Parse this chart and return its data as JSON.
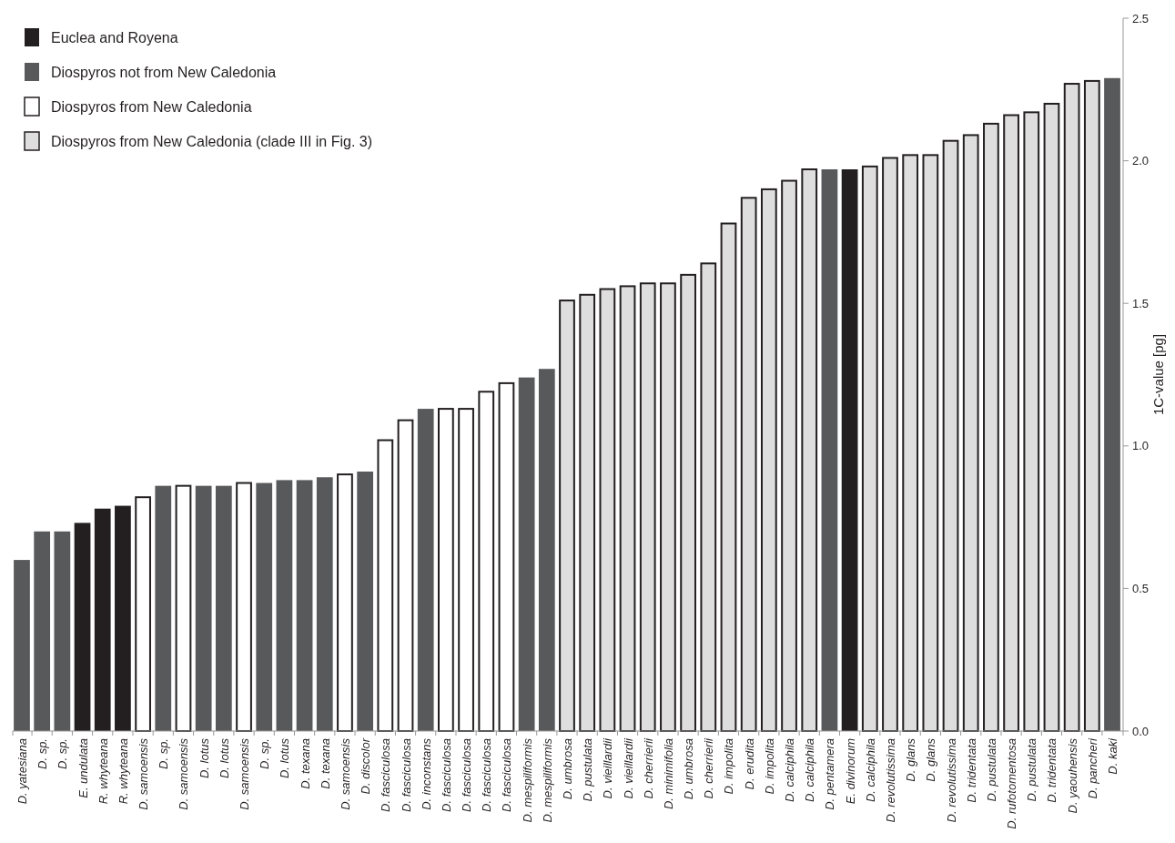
{
  "chart_data": {
    "type": "bar",
    "ylabel": "1C-value [pg]",
    "legend": "top left",
    "categories": [
      "D. yatesiana",
      "D. sp.",
      "D. sp.",
      "E. undulata",
      "R. whyteana",
      "R. whyteana",
      "D. samoensis",
      "D. sp.",
      "D. samoensis",
      "D. lotus",
      "D. lotus",
      "D. samoensis",
      "D. sp.",
      "D. lotus",
      "D. texana",
      "D. texana",
      "D. samoensis",
      "D. discolor",
      "D. fasciculosa",
      "D. fasciculosa",
      "D. inconstans",
      "D. fasciculosa",
      "D. fasciculosa",
      "D. fasciculosa",
      "D. fasciculosa",
      "D. mespiliformis",
      "D. mespiliformis",
      "D. umbrosa",
      "D. pustulata",
      "D. vieillardii",
      "D. vieillardii",
      "D. cherrierii",
      "D. minimifolia",
      "D. umbrosa",
      "D. cherrierii",
      "D. impolita",
      "D. erudita",
      "D. impolita",
      "D. calciphila",
      "D. calciphila",
      "D. pentamera",
      "E. divinorum",
      "D. calciphila",
      "D. revolutissima",
      "D. glans",
      "D. glans",
      "D. revolutissima",
      "D. tridentata",
      "D. pustulata",
      "D. rufotomentosa",
      "D. pustulata",
      "D. tridentata",
      "D. yaouhensis",
      "D. pancheri",
      "D. kaki"
    ],
    "series": [
      {
        "name": "Euclea and Royena",
        "color": "#231f20",
        "values": [
          null,
          null,
          null,
          0.73,
          0.78,
          0.79,
          null,
          null,
          null,
          null,
          null,
          null,
          null,
          null,
          null,
          null,
          null,
          null,
          null,
          null,
          null,
          null,
          null,
          null,
          null,
          null,
          null,
          null,
          null,
          null,
          null,
          null,
          null,
          null,
          null,
          null,
          null,
          null,
          null,
          null,
          null,
          1.97,
          null,
          null,
          null,
          null,
          null,
          null,
          null,
          null,
          null,
          null,
          null,
          null,
          null
        ]
      },
      {
        "name": "Diospyros not from New Caledonia",
        "color": "#58595b",
        "values": [
          0.6,
          0.7,
          0.7,
          null,
          null,
          null,
          null,
          0.86,
          null,
          0.86,
          0.86,
          null,
          0.87,
          0.88,
          0.88,
          0.89,
          null,
          0.91,
          null,
          null,
          1.13,
          null,
          null,
          null,
          null,
          1.24,
          1.27,
          null,
          null,
          null,
          null,
          null,
          null,
          null,
          null,
          null,
          null,
          null,
          null,
          null,
          1.97,
          null,
          null,
          null,
          null,
          null,
          null,
          null,
          null,
          null,
          null,
          null,
          null,
          null,
          2.29
        ]
      },
      {
        "name": "Diospyros from New Caledonia",
        "color": "#ffffff",
        "values": [
          null,
          null,
          null,
          null,
          null,
          null,
          0.82,
          null,
          0.86,
          null,
          null,
          0.87,
          null,
          null,
          null,
          null,
          0.9,
          null,
          1.02,
          1.09,
          null,
          1.13,
          1.13,
          1.19,
          1.22,
          null,
          null,
          null,
          null,
          null,
          null,
          null,
          null,
          null,
          null,
          null,
          null,
          null,
          null,
          null,
          null,
          null,
          null,
          null,
          null,
          null,
          null,
          null,
          null,
          null,
          null,
          null,
          null,
          null,
          null
        ]
      },
      {
        "name": "Diospyros from New Caledonia (clade III in Fig. 3)",
        "color": "#dedede",
        "values": [
          null,
          null,
          null,
          null,
          null,
          null,
          null,
          null,
          null,
          null,
          null,
          null,
          null,
          null,
          null,
          null,
          null,
          null,
          null,
          null,
          null,
          null,
          null,
          null,
          null,
          null,
          null,
          1.51,
          1.53,
          1.55,
          1.56,
          1.57,
          1.57,
          1.6,
          1.64,
          1.78,
          1.87,
          1.9,
          1.93,
          1.97,
          null,
          null,
          1.98,
          2.01,
          2.02,
          2.02,
          2.07,
          2.09,
          2.13,
          2.16,
          2.17,
          2.2,
          2.27,
          2.28,
          null
        ]
      }
    ],
    "ylim": [
      0,
      2.5
    ],
    "yticks": [
      {
        "value": 0,
        "label": "0.0"
      },
      0.5,
      {
        "value": 1,
        "label": "1.0"
      },
      1.5,
      {
        "value": 2,
        "label": "2.0"
      },
      2.5
    ]
  }
}
